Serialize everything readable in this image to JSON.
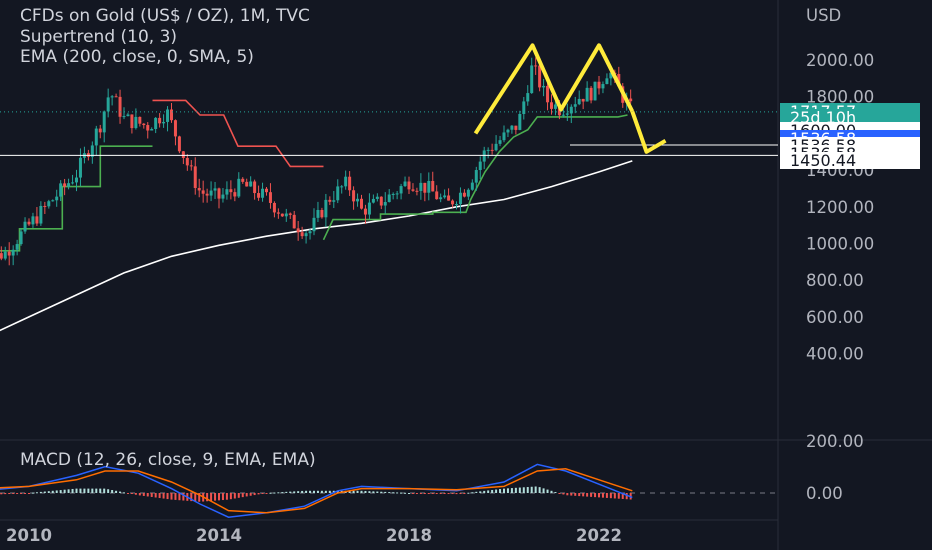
{
  "header": {
    "title": "CFDs on Gold (US$ / OZ), 1M, TVC",
    "supertrend": "Supertrend (10, 3)",
    "ema": "EMA (200, close, 0, SMA, 5)",
    "macd": "MACD (12, 26, close, 9, EMA, EMA)"
  },
  "colors": {
    "background": "#131722",
    "up": "#26a69a",
    "down": "#ef5350",
    "supertrend_up": "#4caf50",
    "supertrend_down": "#ef5350",
    "ema": "#ffffff",
    "annotation": "#ffeb3b",
    "macd_line": "#2962ff",
    "signal_line": "#ff6d00",
    "price_tag": "#26a69a",
    "selected_tag": "#2962ff"
  },
  "chart_data": {
    "type": "candlestick",
    "symbol": "CFDs on Gold (US$ / OZ)",
    "interval": "1M",
    "source": "TVC",
    "currency": "USD",
    "y_ticks": [
      2000,
      1800,
      1600,
      1400,
      1200,
      1000,
      800,
      600,
      400
    ],
    "y_tick_labels": [
      "2000.00",
      "1800.00",
      "1600.00",
      "1400.00",
      "1200.00",
      "1000.00",
      "800.00",
      "600.00",
      "400.00"
    ],
    "x_tick_labels": [
      "2010",
      "2014",
      "2018",
      "2022"
    ],
    "x_tick_years": [
      2010,
      2014,
      2018,
      2022
    ],
    "price_points": [
      [
        2009.0,
        900
      ],
      [
        2009.5,
        950
      ],
      [
        2010.0,
        1100
      ],
      [
        2010.5,
        1240
      ],
      [
        2011.0,
        1380
      ],
      [
        2011.5,
        1650
      ],
      [
        2011.7,
        1830
      ],
      [
        2012.0,
        1680
      ],
      [
        2012.5,
        1640
      ],
      [
        2012.9,
        1720
      ],
      [
        2013.3,
        1450
      ],
      [
        2013.6,
        1280
      ],
      [
        2014.0,
        1250
      ],
      [
        2014.5,
        1320
      ],
      [
        2015.0,
        1250
      ],
      [
        2015.5,
        1120
      ],
      [
        2015.9,
        1060
      ],
      [
        2016.3,
        1240
      ],
      [
        2016.7,
        1330
      ],
      [
        2017.0,
        1180
      ],
      [
        2017.5,
        1240
      ],
      [
        2018.0,
        1340
      ],
      [
        2018.4,
        1300
      ],
      [
        2018.8,
        1210
      ],
      [
        2019.2,
        1300
      ],
      [
        2019.6,
        1500
      ],
      [
        2020.0,
        1580
      ],
      [
        2020.3,
        1650
      ],
      [
        2020.6,
        1970
      ],
      [
        2020.9,
        1780
      ],
      [
        2021.2,
        1730
      ],
      [
        2021.6,
        1800
      ],
      [
        2021.9,
        1830
      ],
      [
        2022.2,
        1950
      ],
      [
        2022.5,
        1800
      ],
      [
        2022.7,
        1720
      ]
    ],
    "supertrend": [
      {
        "trend": "up",
        "points": [
          [
            2009.0,
            960
          ],
          [
            2009.8,
            960
          ],
          [
            2009.8,
            1080
          ],
          [
            2010.7,
            1080
          ],
          [
            2010.7,
            1310
          ],
          [
            2011.5,
            1310
          ],
          [
            2011.5,
            1530
          ],
          [
            2012.6,
            1530
          ]
        ]
      },
      {
        "trend": "down",
        "points": [
          [
            2012.6,
            1780
          ],
          [
            2013.3,
            1780
          ],
          [
            2013.6,
            1700
          ],
          [
            2014.1,
            1700
          ],
          [
            2014.4,
            1530
          ],
          [
            2015.2,
            1530
          ],
          [
            2015.5,
            1420
          ],
          [
            2016.2,
            1420
          ]
        ]
      },
      {
        "trend": "up",
        "points": [
          [
            2016.2,
            1020
          ],
          [
            2016.4,
            1130
          ],
          [
            2017.4,
            1130
          ],
          [
            2017.4,
            1160
          ],
          [
            2018.5,
            1160
          ],
          [
            2018.5,
            1170
          ],
          [
            2019.2,
            1170
          ],
          [
            2019.3,
            1240
          ],
          [
            2019.6,
            1390
          ],
          [
            2019.9,
            1500
          ],
          [
            2020.2,
            1580
          ],
          [
            2020.5,
            1620
          ],
          [
            2020.7,
            1690
          ],
          [
            2022.4,
            1690
          ],
          [
            2022.6,
            1700
          ]
        ]
      }
    ],
    "ema_points": [
      [
        2009.0,
        480
      ],
      [
        2010.0,
        600
      ],
      [
        2011.0,
        720
      ],
      [
        2012.0,
        840
      ],
      [
        2013.0,
        930
      ],
      [
        2014.0,
        990
      ],
      [
        2015.0,
        1040
      ],
      [
        2016.0,
        1080
      ],
      [
        2017.0,
        1110
      ],
      [
        2018.0,
        1150
      ],
      [
        2019.0,
        1200
      ],
      [
        2020.0,
        1240
      ],
      [
        2021.0,
        1310
      ],
      [
        2022.0,
        1390
      ],
      [
        2022.7,
        1450
      ]
    ],
    "pattern": {
      "name": "double top",
      "points": [
        [
          2019.4,
          1600
        ],
        [
          2020.6,
          2080
        ],
        [
          2021.2,
          1730
        ],
        [
          2022.0,
          2080
        ],
        [
          2022.7,
          1720
        ]
      ],
      "arrow_points": [
        [
          2022.7,
          1720
        ],
        [
          2023.0,
          1500
        ],
        [
          2023.4,
          1560
        ]
      ]
    },
    "horizontal_levels": [
      {
        "price": 1717.57,
        "style": "dotted"
      },
      {
        "price": 1536.58,
        "style": "solid"
      },
      {
        "price": 1480,
        "style": "solid"
      }
    ],
    "last_price": 1717.57,
    "countdown": "25d 10h",
    "macd": {
      "zero_label": "0.00",
      "top_label": "200.00",
      "x": [
        2009.0,
        2010.0,
        2011.0,
        2011.6,
        2012.3,
        2013.0,
        2013.6,
        2014.2,
        2015.0,
        2015.8,
        2016.5,
        2017.0,
        2018.0,
        2019.0,
        2020.0,
        2020.7,
        2021.3,
        2022.0,
        2022.7
      ],
      "macd": [
        10,
        30,
        80,
        120,
        90,
        20,
        -50,
        -110,
        -90,
        -60,
        10,
        30,
        20,
        10,
        50,
        130,
        100,
        40,
        -20
      ],
      "signal": [
        20,
        30,
        60,
        100,
        100,
        50,
        -10,
        -80,
        -90,
        -70,
        0,
        20,
        20,
        15,
        30,
        100,
        110,
        60,
        10
      ]
    }
  },
  "price_tags": [
    {
      "label": "1717.57",
      "color": "#26a69a",
      "text_color": "#ffffff",
      "price": 1717.57
    },
    {
      "label": "25d 10h",
      "color": "#26a69a",
      "text_color": "#ffffff",
      "price": 1685
    },
    {
      "label": "1600.00",
      "color": "#ffffff",
      "text_color": "#131722",
      "price": 1612
    },
    {
      "label": "1536.58",
      "color": "#2962ff",
      "text_color": "#ffffff",
      "price": 1570
    },
    {
      "label": "1536.58",
      "color": "#ffffff",
      "text_color": "#131722",
      "price": 1530
    },
    {
      "label": "1536.58",
      "color": "#ffffff",
      "text_color": "#131722",
      "price": 1490
    },
    {
      "label": "1450.44",
      "color": "#ffffff",
      "text_color": "#131722",
      "price": 1450
    }
  ]
}
